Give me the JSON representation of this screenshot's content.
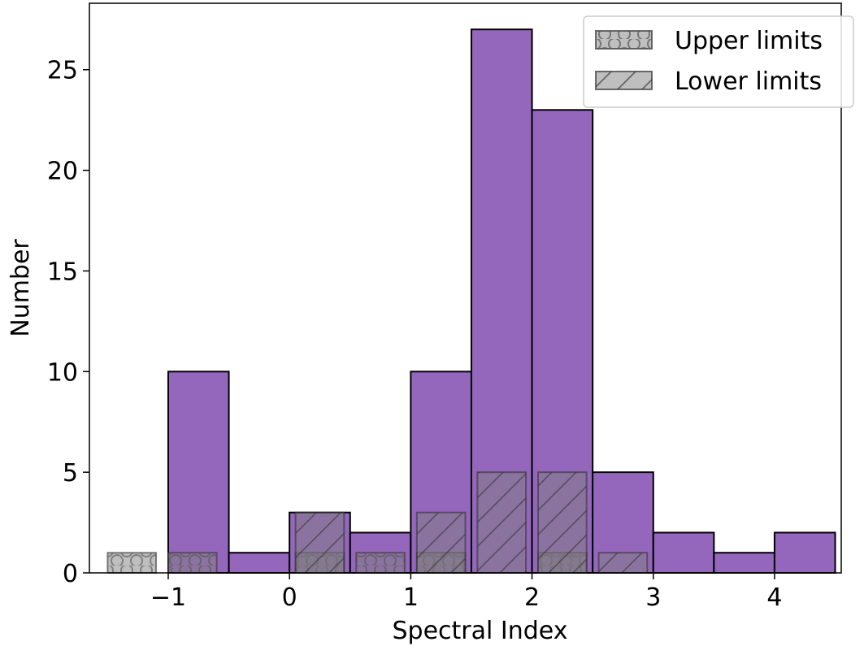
{
  "colors": {
    "main": "#9467bd",
    "limits_fill": "#808080",
    "edge": "#000000"
  },
  "chart_data": {
    "type": "bar",
    "xlabel": "Spectral Index",
    "ylabel": "Number",
    "xlim": [
      -1.65,
      4.55
    ],
    "ylim": [
      0,
      28.3
    ],
    "xticks": [
      -1,
      0,
      1,
      2,
      3,
      4
    ],
    "xtick_labels": [
      "−1",
      "0",
      "1",
      "2",
      "3",
      "4"
    ],
    "yticks": [
      0,
      5,
      10,
      15,
      20,
      25
    ],
    "ytick_labels": [
      "0",
      "5",
      "10",
      "15",
      "20",
      "25"
    ],
    "grid": false,
    "legend": {
      "position": "top-right",
      "entries": [
        {
          "label": "Upper limits",
          "hatch": "circles"
        },
        {
          "label": "Lower limits",
          "hatch": "diagonal"
        }
      ]
    },
    "series": [
      {
        "bins": [
          [
            -1.0,
            -0.5
          ],
          [
            -0.5,
            0.0
          ],
          [
            0.0,
            0.5
          ],
          [
            0.5,
            1.0
          ],
          [
            1.0,
            1.5
          ],
          [
            1.5,
            2.0
          ],
          [
            2.0,
            2.5
          ],
          [
            2.5,
            3.0
          ],
          [
            3.0,
            3.5
          ],
          [
            3.5,
            4.0
          ],
          [
            4.0,
            4.5
          ]
        ],
        "values": [
          10,
          1,
          3,
          2,
          10,
          27,
          23,
          5,
          2,
          1,
          2
        ],
        "color": "#9467bd"
      },
      {
        "name": "Upper limits",
        "hatch": "circles",
        "bins": [
          [
            -1.5,
            -1.1
          ],
          [
            -1.0,
            -0.6
          ],
          [
            0.05,
            0.45
          ],
          [
            0.55,
            0.95
          ],
          [
            1.05,
            1.45
          ],
          [
            2.05,
            2.45
          ]
        ],
        "values": [
          1,
          1,
          1,
          1,
          1,
          1
        ]
      },
      {
        "name": "Lower limits",
        "hatch": "diagonal",
        "bins": [
          [
            0.05,
            0.45
          ],
          [
            1.05,
            1.45
          ],
          [
            1.55,
            1.95
          ],
          [
            2.05,
            2.45
          ],
          [
            2.55,
            2.95
          ]
        ],
        "values": [
          3,
          3,
          5,
          5,
          1
        ]
      }
    ]
  }
}
